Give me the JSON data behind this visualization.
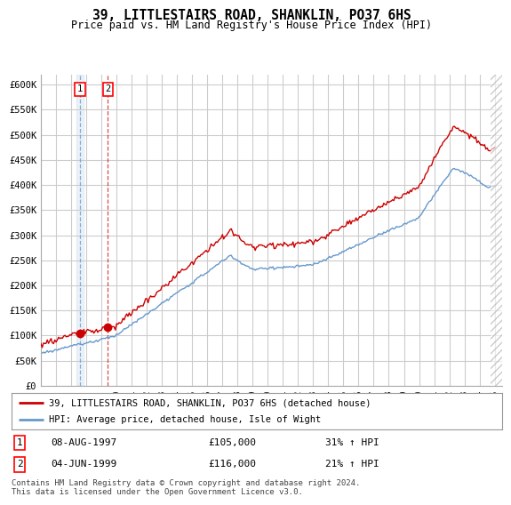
{
  "title": "39, LITTLESTAIRS ROAD, SHANKLIN, PO37 6HS",
  "subtitle": "Price paid vs. HM Land Registry's House Price Index (HPI)",
  "ylim": [
    0,
    620000
  ],
  "yticks": [
    0,
    50000,
    100000,
    150000,
    200000,
    250000,
    300000,
    350000,
    400000,
    450000,
    500000,
    550000,
    600000
  ],
  "ytick_labels": [
    "£0",
    "£50K",
    "£100K",
    "£150K",
    "£200K",
    "£250K",
    "£300K",
    "£350K",
    "£400K",
    "£450K",
    "£500K",
    "£550K",
    "£600K"
  ],
  "background_color": "#ffffff",
  "plot_bg_color": "#ffffff",
  "grid_color": "#cccccc",
  "hpi_color": "#6699cc",
  "price_color": "#cc0000",
  "sale1_x": 1997.58,
  "sale1_y": 105000,
  "sale2_x": 1999.42,
  "sale2_y": 116000,
  "sale1_label": "08-AUG-1997",
  "sale1_price": "£105,000",
  "sale1_hpi": "31% ↑ HPI",
  "sale2_label": "04-JUN-1999",
  "sale2_price": "£116,000",
  "sale2_hpi": "21% ↑ HPI",
  "legend_line1": "39, LITTLESTAIRS ROAD, SHANKLIN, PO37 6HS (detached house)",
  "legend_line2": "HPI: Average price, detached house, Isle of Wight",
  "footer": "Contains HM Land Registry data © Crown copyright and database right 2024.\nThis data is licensed under the Open Government Licence v3.0.",
  "xlim_start": 1995.0,
  "xlim_end": 2025.5
}
